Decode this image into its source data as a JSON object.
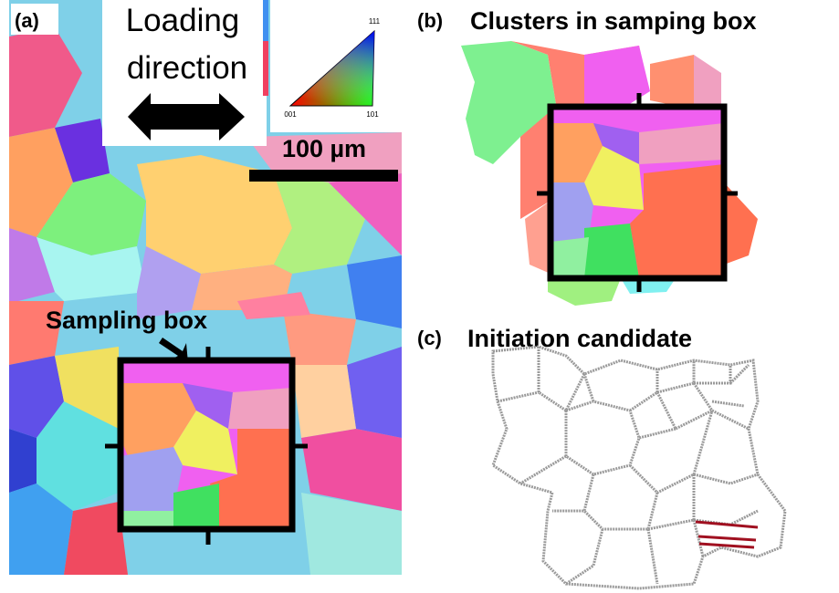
{
  "panels": [
    {
      "label": "(a)",
      "legend": {
        "title_lines": [
          "Loading",
          "direction"
        ],
        "triangle_labels": [
          "111",
          "001",
          "101"
        ]
      },
      "scale_bar": "100 µm",
      "annotation": "Sampling box"
    },
    {
      "label": "(b)",
      "title": "Clusters in samping box"
    },
    {
      "label": "(c)",
      "title": "Initiation candidate"
    }
  ]
}
